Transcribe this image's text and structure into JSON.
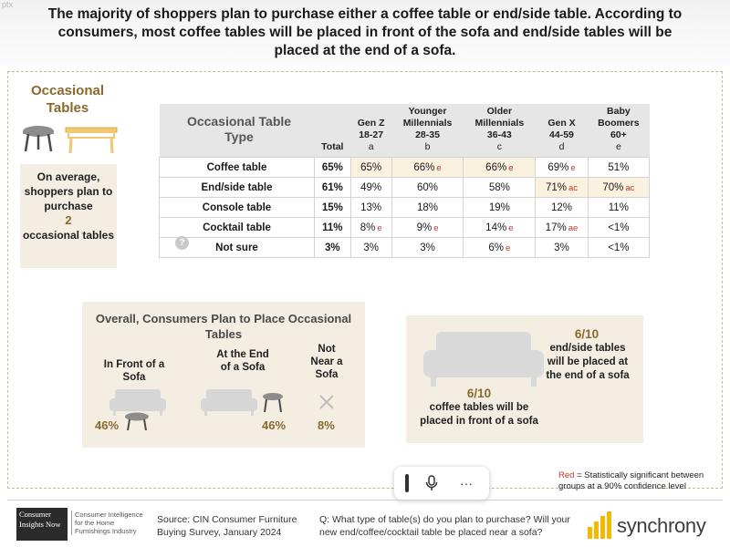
{
  "corner_tag": "ptx",
  "title": "The majority of shoppers plan to purchase either a coffee table or end/side table. According to consumers, most coffee tables will be placed in front of the sofa and end/side tables will be placed at the end of a sofa.",
  "occasional": {
    "heading": "Occasional Tables",
    "summary_pre": "On average, shoppers plan to purchase",
    "summary_num": "2",
    "summary_post": "occasional tables"
  },
  "table": {
    "headers": [
      {
        "lines": [
          "Occasional Table",
          "Type"
        ]
      },
      {
        "lines": [
          "Total"
        ]
      },
      {
        "lines": [
          "Gen Z",
          "18-27",
          "a"
        ]
      },
      {
        "lines": [
          "Younger",
          "Millennials",
          "28-35",
          "b"
        ]
      },
      {
        "lines": [
          "Older",
          "Millennials",
          "36-43",
          "c"
        ]
      },
      {
        "lines": [
          "Gen X",
          "44-59",
          "d"
        ]
      },
      {
        "lines": [
          "Baby",
          "Boomers",
          "60+",
          "e"
        ]
      }
    ],
    "rows": [
      {
        "label": "Coffee table",
        "total": "65%",
        "cells": [
          {
            "v": "65%",
            "s": "",
            "hl": true
          },
          {
            "v": "66%",
            "s": "e",
            "hl": true
          },
          {
            "v": "66%",
            "s": "e",
            "hl": true
          },
          {
            "v": "69%",
            "s": "e",
            "hl": false
          },
          {
            "v": "51%",
            "s": "",
            "hl": false
          }
        ]
      },
      {
        "label": "End/side table",
        "total": "61%",
        "cells": [
          {
            "v": "49%",
            "s": "",
            "hl": false
          },
          {
            "v": "60%",
            "s": "",
            "hl": false
          },
          {
            "v": "58%",
            "s": "",
            "hl": false
          },
          {
            "v": "71%",
            "s": "ac",
            "hl": true
          },
          {
            "v": "70%",
            "s": "ac",
            "hl": true
          }
        ]
      },
      {
        "label": "Console table",
        "total": "15%",
        "cells": [
          {
            "v": "13%",
            "s": "",
            "hl": false
          },
          {
            "v": "18%",
            "s": "",
            "hl": false
          },
          {
            "v": "19%",
            "s": "",
            "hl": false
          },
          {
            "v": "12%",
            "s": "",
            "hl": false
          },
          {
            "v": "11%",
            "s": "",
            "hl": false
          }
        ]
      },
      {
        "label": "Cocktail table",
        "total": "11%",
        "cells": [
          {
            "v": "8%",
            "s": "e",
            "hl": false
          },
          {
            "v": "9%",
            "s": "e",
            "hl": false
          },
          {
            "v": "14%",
            "s": "e",
            "hl": false
          },
          {
            "v": "17%",
            "s": "ae",
            "hl": false
          },
          {
            "v": "<1%",
            "s": "",
            "hl": false
          }
        ]
      },
      {
        "label": "Not sure",
        "total": "3%",
        "cells": [
          {
            "v": "3%",
            "s": "",
            "hl": false
          },
          {
            "v": "3%",
            "s": "",
            "hl": false
          },
          {
            "v": "6%",
            "s": "e",
            "hl": false
          },
          {
            "v": "3%",
            "s": "",
            "hl": false
          },
          {
            "v": "<1%",
            "s": "",
            "hl": false
          }
        ]
      }
    ],
    "question_icon": "?"
  },
  "placement": {
    "title": "Overall, Consumers Plan to Place Occasional Tables",
    "front_label": "In Front of a Sofa",
    "front_pct": "46%",
    "end_label": "At the End of a Sofa",
    "end_pct": "46%",
    "not_label": "Not Near a Sofa",
    "not_pct": "8%"
  },
  "tenths": {
    "end_num": "6/10",
    "end_text": "end/side tables will be placed at the end of a sofa",
    "coffee_num": "6/10",
    "coffee_text": "coffee tables will be placed in front of a sofa"
  },
  "legend": {
    "red_word": "Red",
    "text": " = Statistically significant between groups at a 90% confidence level"
  },
  "toolbar": {
    "mic_icon": "microphone-icon",
    "more_label": "···"
  },
  "footer": {
    "logo_text": "Consumer Insights Now",
    "logo_sub": "Consumer Intelligence for the Home Furnishings Industry",
    "source": "Source: CIN Consumer Furniture Buying Survey, January 2024",
    "question": "Q: What type of table(s) do you plan to purchase? Will your new end/coffee/cocktail table be placed near a sofa?",
    "brand": "synchrony"
  },
  "colors": {
    "accent": "#8a6a2c",
    "panel": "#f3ede2",
    "highlight": "#fbf1df",
    "sig_red": "#c0392b",
    "brand_yellow": "#f5b800"
  }
}
